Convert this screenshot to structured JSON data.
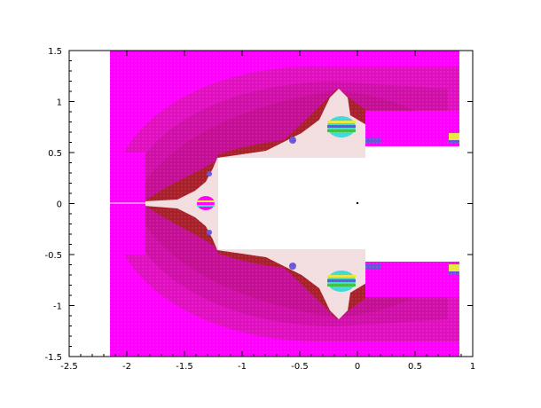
{
  "chart_data": {
    "type": "heatmap",
    "description_colors": {
      "background": "#ffffff",
      "magenta": "#ff00ff",
      "deep_pink": "#cc0f8f",
      "mid_pink": "#e010c0",
      "dark_red": "#a8202a",
      "blue_purple": "#6a55d8",
      "cyan": "#40d8d8",
      "yellow": "#e8e840",
      "green": "#40c040"
    },
    "xlim": [
      -2.5,
      1
    ],
    "ylim": [
      -1.5,
      1.5
    ],
    "x_ticks": [
      "-2.5",
      "-2",
      "-1.5",
      "-1",
      "-0.5",
      "0",
      "0.5",
      "1"
    ],
    "x_tick_values": [
      -2.5,
      -2,
      -1.5,
      -1,
      -0.5,
      0,
      0.5,
      1
    ],
    "y_ticks": [
      "1.5",
      "1",
      "0.5",
      "0",
      "-0.5",
      "-1",
      "-1.5"
    ],
    "y_tick_values": [
      1.5,
      1,
      0.5,
      0,
      -0.5,
      -1,
      -1.5
    ],
    "region": {
      "x_range": [
        -2.1,
        0.88
      ],
      "y_range": [
        -1.5,
        1.5
      ],
      "inner_white_x": [
        -1.2,
        0.07
      ],
      "inner_white_y": [
        -0.43,
        0.43
      ],
      "tip_x": -2.1
    },
    "title": "",
    "xlabel": "",
    "ylabel": ""
  }
}
